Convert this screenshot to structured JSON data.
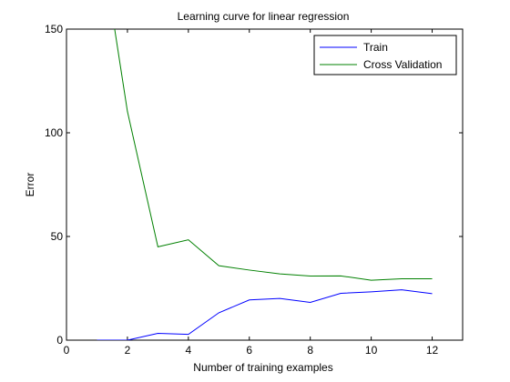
{
  "chart_data": {
    "type": "line",
    "title": "Learning curve for linear regression",
    "xlabel": "Number of training examples",
    "ylabel": "Error",
    "xlim": [
      0,
      13
    ],
    "ylim": [
      0,
      150
    ],
    "xticks": [
      0,
      2,
      4,
      6,
      8,
      10,
      12
    ],
    "yticks": [
      0,
      50,
      100,
      150
    ],
    "grid": false,
    "legend": "top-right",
    "series": [
      {
        "name": "Train",
        "color": "#0000ff",
        "x": [
          1,
          2,
          3,
          4,
          5,
          6,
          7,
          8,
          9,
          10,
          11,
          12
        ],
        "y": [
          0,
          0,
          3.3,
          2.8,
          13.2,
          19.4,
          20.1,
          18.2,
          22.6,
          23.3,
          24.3,
          22.4
        ]
      },
      {
        "name": "Cross Validation",
        "color": "#008000",
        "x": [
          1,
          2,
          3,
          4,
          5,
          6,
          7,
          8,
          9,
          10,
          11,
          12
        ],
        "y": [
          205.1,
          110.3,
          45.0,
          48.4,
          35.9,
          33.8,
          31.97,
          30.9,
          31.0,
          28.9,
          29.6,
          29.6
        ]
      }
    ]
  }
}
